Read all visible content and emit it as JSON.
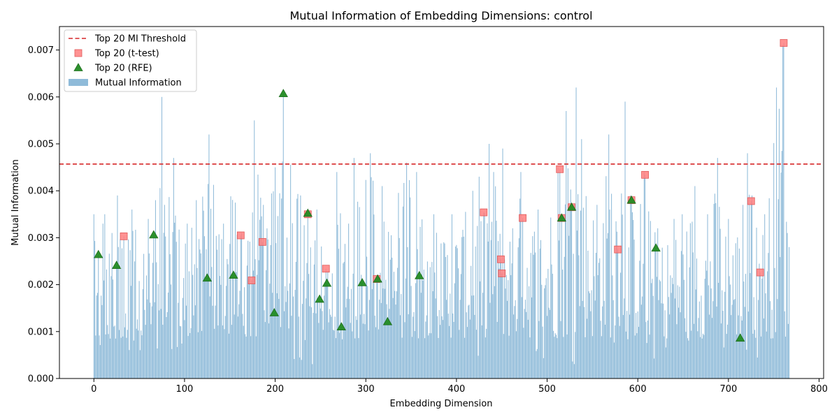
{
  "chart_data": {
    "type": "bar",
    "title": "Mutual Information of Embedding Dimensions: control",
    "xlabel": "Embedding Dimension",
    "ylabel": "Mutual Information",
    "xlim": [
      -38,
      805
    ],
    "ylim": [
      0,
      0.0075
    ],
    "xticks": [
      0,
      100,
      200,
      300,
      400,
      500,
      600,
      700,
      800
    ],
    "yticks": [
      0.0,
      0.001,
      0.002,
      0.003,
      0.004,
      0.005,
      0.006,
      0.007
    ],
    "ytick_labels": [
      "0.000",
      "0.001",
      "0.002",
      "0.003",
      "0.004",
      "0.005",
      "0.006",
      "0.007"
    ],
    "n_dimensions": 768,
    "grid": false,
    "legend_position": "top-left",
    "threshold": {
      "name": "Top 20 MI Threshold",
      "value": 0.00457,
      "color": "#d62728"
    },
    "bar_series": {
      "name": "Mutual Information",
      "color": "#1f77b4"
    },
    "peaks": [
      {
        "x": 0,
        "y": 0.0035
      },
      {
        "x": 5,
        "y": 0.0026
      },
      {
        "x": 10,
        "y": 0.0033
      },
      {
        "x": 12,
        "y": 0.0035
      },
      {
        "x": 20,
        "y": 0.0031
      },
      {
        "x": 26,
        "y": 0.0039
      },
      {
        "x": 33,
        "y": 0.003
      },
      {
        "x": 42,
        "y": 0.0036
      },
      {
        "x": 60,
        "y": 0.0034
      },
      {
        "x": 68,
        "y": 0.0038
      },
      {
        "x": 75,
        "y": 0.006
      },
      {
        "x": 78,
        "y": 0.0037
      },
      {
        "x": 88,
        "y": 0.0047
      },
      {
        "x": 103,
        "y": 0.0033
      },
      {
        "x": 113,
        "y": 0.0038
      },
      {
        "x": 127,
        "y": 0.0052
      },
      {
        "x": 143,
        "y": 0.0033
      },
      {
        "x": 154,
        "y": 0.005
      },
      {
        "x": 163,
        "y": 0.0031
      },
      {
        "x": 177,
        "y": 0.0055
      },
      {
        "x": 187,
        "y": 0.0037
      },
      {
        "x": 200,
        "y": 0.0045
      },
      {
        "x": 209,
        "y": 0.0061
      },
      {
        "x": 228,
        "y": 0.0039
      },
      {
        "x": 236,
        "y": 0.0035
      },
      {
        "x": 246,
        "y": 0.0036
      },
      {
        "x": 256,
        "y": 0.0025
      },
      {
        "x": 268,
        "y": 0.0044
      },
      {
        "x": 281,
        "y": 0.0033
      },
      {
        "x": 287,
        "y": 0.0047
      },
      {
        "x": 305,
        "y": 0.0048
      },
      {
        "x": 318,
        "y": 0.0041
      },
      {
        "x": 345,
        "y": 0.0046
      },
      {
        "x": 356,
        "y": 0.0044
      },
      {
        "x": 375,
        "y": 0.0035
      },
      {
        "x": 395,
        "y": 0.0035
      },
      {
        "x": 418,
        "y": 0.004
      },
      {
        "x": 425,
        "y": 0.0043
      },
      {
        "x": 430,
        "y": 0.0036
      },
      {
        "x": 436,
        "y": 0.005
      },
      {
        "x": 451,
        "y": 0.0049
      },
      {
        "x": 462,
        "y": 0.0032
      },
      {
        "x": 471,
        "y": 0.0044
      },
      {
        "x": 490,
        "y": 0.0036
      },
      {
        "x": 512,
        "y": 0.0045
      },
      {
        "x": 521,
        "y": 0.0057
      },
      {
        "x": 532,
        "y": 0.0062
      },
      {
        "x": 538,
        "y": 0.0051
      },
      {
        "x": 555,
        "y": 0.0037
      },
      {
        "x": 568,
        "y": 0.0052
      },
      {
        "x": 586,
        "y": 0.0059
      },
      {
        "x": 592,
        "y": 0.0039
      },
      {
        "x": 607,
        "y": 0.0044
      },
      {
        "x": 622,
        "y": 0.0032
      },
      {
        "x": 640,
        "y": 0.0034
      },
      {
        "x": 649,
        "y": 0.0035
      },
      {
        "x": 663,
        "y": 0.0041
      },
      {
        "x": 677,
        "y": 0.0035
      },
      {
        "x": 688,
        "y": 0.0047
      },
      {
        "x": 700,
        "y": 0.0034
      },
      {
        "x": 716,
        "y": 0.0037
      },
      {
        "x": 721,
        "y": 0.0048
      },
      {
        "x": 726,
        "y": 0.0039
      },
      {
        "x": 740,
        "y": 0.0035
      },
      {
        "x": 753,
        "y": 0.0062
      },
      {
        "x": 760,
        "y": 0.0071
      },
      {
        "x": 765,
        "y": 0.0031
      },
      {
        "x": 767,
        "y": 0.0028
      }
    ],
    "scatter_series": [
      {
        "name": "Top 20 (t-test)",
        "marker": "square",
        "color": "#ff7f7f",
        "edge": "#e05a5a",
        "points": [
          {
            "x": 33,
            "y": 0.00303
          },
          {
            "x": 162,
            "y": 0.00305
          },
          {
            "x": 174,
            "y": 0.00209
          },
          {
            "x": 186,
            "y": 0.00291
          },
          {
            "x": 236,
            "y": 0.0035
          },
          {
            "x": 256,
            "y": 0.00234
          },
          {
            "x": 312,
            "y": 0.00212
          },
          {
            "x": 430,
            "y": 0.00354
          },
          {
            "x": 449,
            "y": 0.00254
          },
          {
            "x": 450,
            "y": 0.00224
          },
          {
            "x": 473,
            "y": 0.00342
          },
          {
            "x": 514,
            "y": 0.00446
          },
          {
            "x": 516,
            "y": 0.00342
          },
          {
            "x": 527,
            "y": 0.00365
          },
          {
            "x": 578,
            "y": 0.00275
          },
          {
            "x": 593,
            "y": 0.0038
          },
          {
            "x": 608,
            "y": 0.00434
          },
          {
            "x": 725,
            "y": 0.00378
          },
          {
            "x": 735,
            "y": 0.00226
          },
          {
            "x": 761,
            "y": 0.00715
          }
        ]
      },
      {
        "name": "Top 20 (RFE)",
        "marker": "triangle",
        "color": "#228b22",
        "edge": "#1e6e1e",
        "points": [
          {
            "x": 5,
            "y": 0.00264
          },
          {
            "x": 25,
            "y": 0.00241
          },
          {
            "x": 66,
            "y": 0.00306
          },
          {
            "x": 125,
            "y": 0.00214
          },
          {
            "x": 154,
            "y": 0.0022
          },
          {
            "x": 199,
            "y": 0.0014
          },
          {
            "x": 209,
            "y": 0.00607
          },
          {
            "x": 236,
            "y": 0.00352
          },
          {
            "x": 249,
            "y": 0.00169
          },
          {
            "x": 257,
            "y": 0.00203
          },
          {
            "x": 273,
            "y": 0.0011
          },
          {
            "x": 296,
            "y": 0.00204
          },
          {
            "x": 313,
            "y": 0.00212
          },
          {
            "x": 324,
            "y": 0.00121
          },
          {
            "x": 359,
            "y": 0.00219
          },
          {
            "x": 516,
            "y": 0.00342
          },
          {
            "x": 527,
            "y": 0.00365
          },
          {
            "x": 593,
            "y": 0.0038
          },
          {
            "x": 620,
            "y": 0.00278
          },
          {
            "x": 713,
            "y": 0.00086
          }
        ]
      }
    ]
  }
}
